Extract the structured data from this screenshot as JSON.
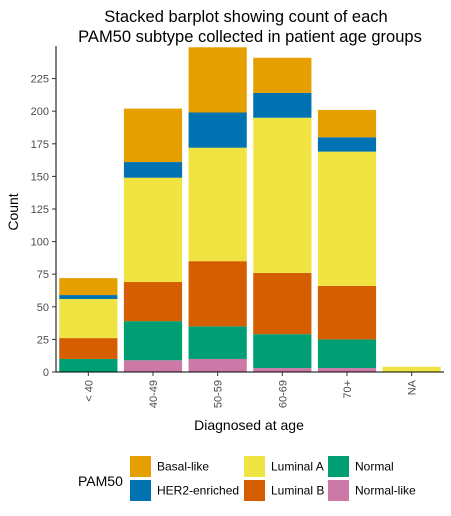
{
  "chart_data": {
    "type": "bar",
    "stacked": true,
    "title_lines": [
      "Stacked barplot showing count of each",
      "PAM50 subtype  collected in patient age groups"
    ],
    "xlabel": "Diagnosed at age",
    "ylabel": "Count",
    "categories": [
      "< 40",
      "40-49",
      "50-59",
      "60-69",
      "70+",
      "NA"
    ],
    "y_ticks": [
      0,
      25,
      50,
      75,
      100,
      125,
      150,
      175,
      200,
      225
    ],
    "ylim": [
      0,
      250
    ],
    "grid": false,
    "legend_position": "bottom",
    "legend_title": "PAM50",
    "series": [
      {
        "name": "Normal-like",
        "color": "#CC79A7",
        "values": [
          0,
          9,
          10,
          3,
          3,
          0
        ]
      },
      {
        "name": "Normal",
        "color": "#009E73",
        "values": [
          10,
          30,
          25,
          26,
          22,
          0
        ]
      },
      {
        "name": "Luminal B",
        "color": "#D55E00",
        "values": [
          16,
          30,
          50,
          47,
          41,
          0
        ]
      },
      {
        "name": "Luminal A",
        "color": "#F0E442",
        "values": [
          30,
          80,
          87,
          119,
          103,
          4
        ]
      },
      {
        "name": "HER2-enriched",
        "color": "#0072B2",
        "values": [
          3,
          12,
          27,
          19,
          11,
          0
        ]
      },
      {
        "name": "Basal-like",
        "color": "#E69F00",
        "values": [
          13,
          41,
          50,
          27,
          21,
          0
        ]
      }
    ],
    "legend_order": [
      "Basal-like",
      "HER2-enriched",
      "Luminal A",
      "Luminal B",
      "Normal",
      "Normal-like"
    ]
  }
}
